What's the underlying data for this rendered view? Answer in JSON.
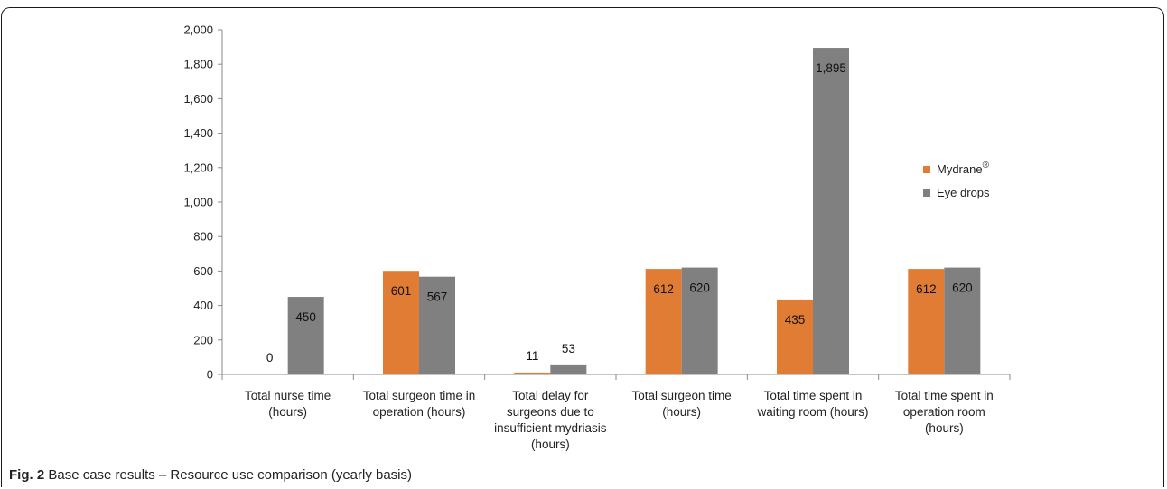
{
  "caption": {
    "label": "Fig. 2",
    "text": "Base case results – Resource use comparison (yearly basis)"
  },
  "colors": {
    "mydrane": "#E07C34",
    "eye_drops": "#808080"
  },
  "chart_data": {
    "type": "bar",
    "categories": [
      [
        "Total nurse time",
        "(hours)"
      ],
      [
        "Total surgeon time in",
        "operation (hours)"
      ],
      [
        "Total delay for",
        "surgeons due to",
        "insufficient mydriasis",
        "(hours)"
      ],
      [
        "Total surgeon time",
        "(hours)"
      ],
      [
        "Total time spent in",
        "waiting room (hours)"
      ],
      [
        "Total time spent in",
        "operation room",
        "(hours)"
      ]
    ],
    "series": [
      {
        "name": "Mydrane",
        "name_superscript": "®",
        "values": [
          0,
          601,
          11,
          612,
          435,
          612
        ],
        "labels": [
          "0",
          "601",
          "11",
          "612",
          "435",
          "612"
        ]
      },
      {
        "name": "Eye drops",
        "values": [
          450,
          567,
          53,
          620,
          1895,
          620
        ],
        "labels": [
          "450",
          "567",
          "53",
          "620",
          "1,895",
          "620"
        ]
      }
    ],
    "ylim": [
      0,
      2000
    ],
    "yticks": [
      0,
      200,
      400,
      600,
      800,
      1000,
      1200,
      1400,
      1600,
      1800,
      2000
    ],
    "ytick_labels": [
      "0",
      "200",
      "400",
      "600",
      "800",
      "1,000",
      "1,200",
      "1,400",
      "1,600",
      "1,800",
      "2,000"
    ],
    "grid": false,
    "legend_position": "right"
  }
}
